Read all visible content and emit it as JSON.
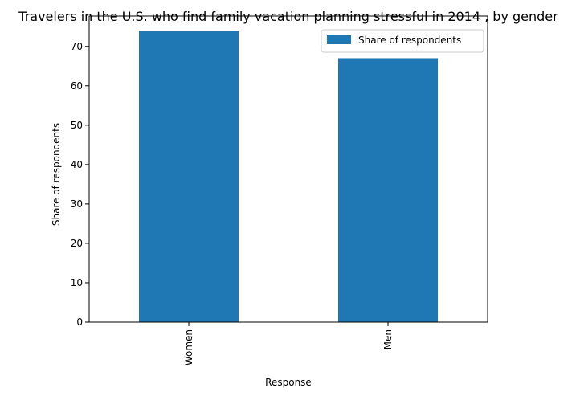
{
  "chart_data": {
    "type": "bar",
    "title": "Travelers in the U.S. who find family vacation planning stressful in 2014 , by gender",
    "xlabel": "Response",
    "ylabel": "Share of respondents",
    "categories": [
      "Women",
      "Men"
    ],
    "series": [
      {
        "name": "Share of respondents",
        "values": [
          74,
          67
        ],
        "color": "#1f77b4"
      }
    ],
    "ylim": [
      0,
      77.7
    ],
    "yticks": [
      0,
      10,
      20,
      30,
      40,
      50,
      60,
      70
    ],
    "grid": false,
    "legend": "top-right"
  }
}
